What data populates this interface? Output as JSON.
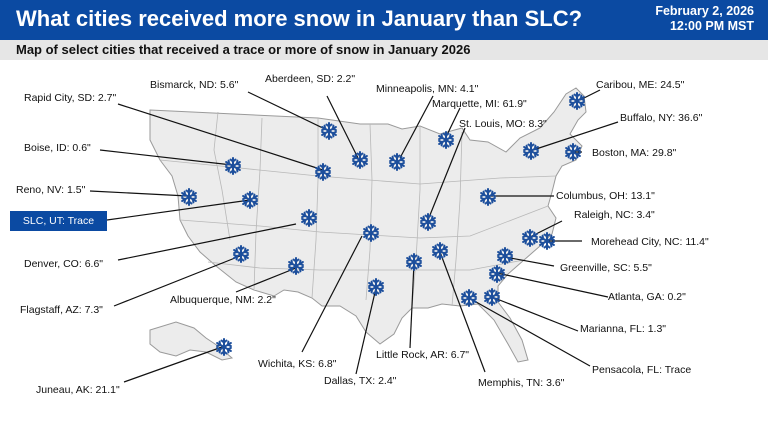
{
  "header": {
    "title": "What cities received more snow in January than SLC?",
    "date": "February 2, 2026",
    "time": "12:00 PM MST"
  },
  "subtitle": "Map of select cities that received a trace or more of snow in January 2026",
  "colors": {
    "header": "#0b4aa2",
    "snowflake": "#1d4f9c",
    "land": "#ececec",
    "border": "#9a9a9a"
  },
  "cities": [
    {
      "id": "bismarck",
      "label": "Bismarck, ND: 5.6\""
    },
    {
      "id": "aberdeen",
      "label": "Aberdeen, SD: 2.2\""
    },
    {
      "id": "minneapolis",
      "label": "Minneapolis, MN: 4.1\""
    },
    {
      "id": "caribou",
      "label": "Caribou, ME: 24.5\""
    },
    {
      "id": "rapidcity",
      "label": "Rapid City, SD: 2.7\""
    },
    {
      "id": "marquette",
      "label": "Marquette, MI: 61.9\""
    },
    {
      "id": "stlouis",
      "label": "St. Louis, MO: 8.3\""
    },
    {
      "id": "buffalo",
      "label": "Buffalo, NY: 36.6\""
    },
    {
      "id": "boise",
      "label": "Boise, ID: 0.6\""
    },
    {
      "id": "boston",
      "label": "Boston, MA: 29.8\""
    },
    {
      "id": "reno",
      "label": "Reno, NV: 1.5\""
    },
    {
      "id": "columbus",
      "label": "Columbus, OH: 13.1\""
    },
    {
      "id": "slc",
      "label": "SLC, UT: Trace"
    },
    {
      "id": "raleigh",
      "label": "Raleigh, NC: 3.4\""
    },
    {
      "id": "denver",
      "label": "Denver, CO: 6.6\""
    },
    {
      "id": "moreheadcity",
      "label": "Morehead City, NC: 11.4\""
    },
    {
      "id": "greenville",
      "label": "Greenville, SC: 5.5\""
    },
    {
      "id": "flagstaff",
      "label": "Flagstaff, AZ: 7.3\""
    },
    {
      "id": "albuquerque",
      "label": "Albuquerque, NM: 2.2\""
    },
    {
      "id": "atlanta",
      "label": "Atlanta, GA: 0.2\""
    },
    {
      "id": "marianna",
      "label": "Marianna, FL: 1.3\""
    },
    {
      "id": "wichita",
      "label": "Wichita, KS: 6.8\""
    },
    {
      "id": "littlerock",
      "label": "Little Rock, AR: 6.7\""
    },
    {
      "id": "pensacola",
      "label": "Pensacola, FL: Trace"
    },
    {
      "id": "juneau",
      "label": "Juneau, AK: 21.1\""
    },
    {
      "id": "memphis",
      "label": "Memphis, TN: 3.6\""
    },
    {
      "id": "dallas",
      "label": "Dallas, TX: 2.4\""
    }
  ]
}
